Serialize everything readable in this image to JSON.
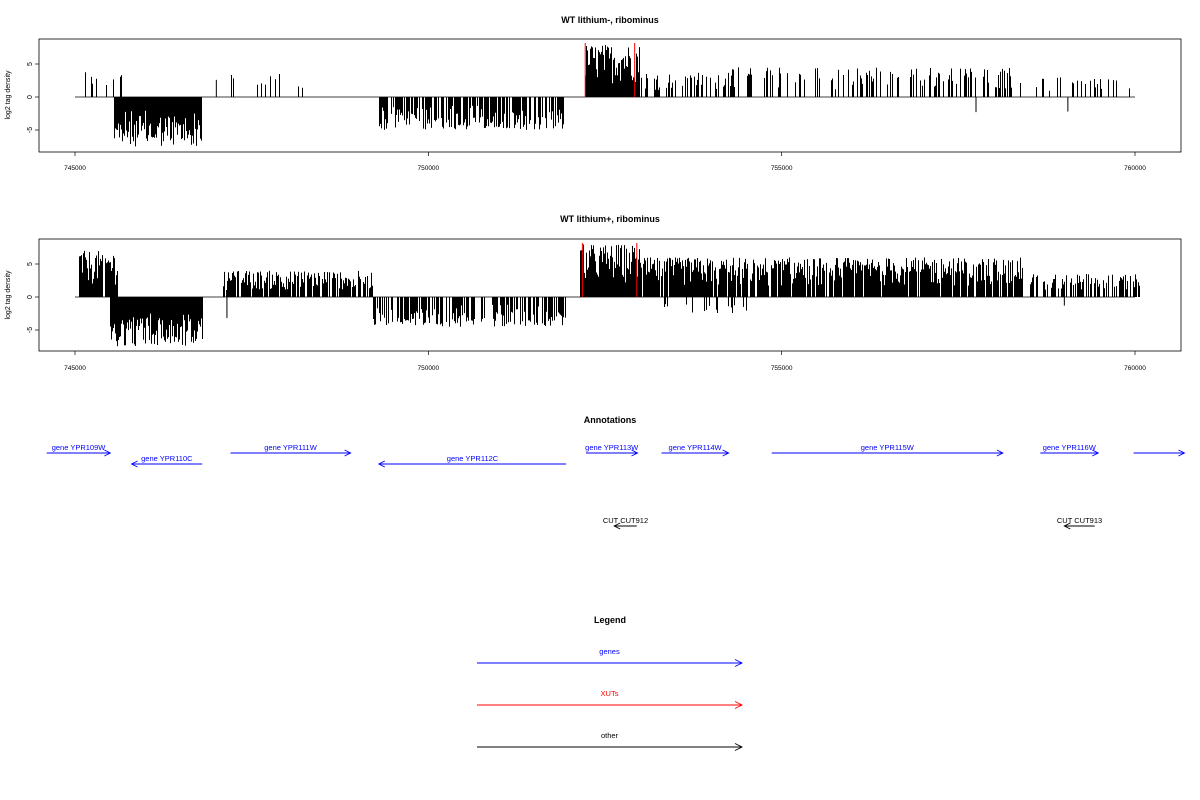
{
  "chart_data": [
    {
      "type": "bar",
      "title": "WT lithium-, ribominus",
      "ylabel": "log2 tag density",
      "xlabel": "",
      "xlim": [
        745000,
        760000
      ],
      "ylim": [
        -7,
        7
      ],
      "xticks": [
        745000,
        750000,
        755000,
        760000
      ],
      "xtick_labels": [
        "745000",
        "750000",
        "755000",
        "760000"
      ],
      "yticks": [
        -5,
        0,
        5
      ],
      "ytick_labels": [
        "-5",
        "0",
        "5"
      ],
      "grid": false,
      "signal_segments": [
        {
          "start": 745050,
          "end": 745650,
          "sign": 1,
          "max": 4,
          "density": 0.25
        },
        {
          "start": 745550,
          "end": 746780,
          "sign": -1,
          "max": 7.5,
          "density": 1.0
        },
        {
          "start": 747100,
          "end": 748350,
          "sign": 1,
          "max": 3.5,
          "density": 0.12
        },
        {
          "start": 749300,
          "end": 751900,
          "sign": -1,
          "max": 5,
          "density": 0.7
        },
        {
          "start": 752220,
          "end": 752980,
          "sign": 1,
          "max": 8,
          "density": 1.0
        },
        {
          "start": 752980,
          "end": 754200,
          "sign": 1,
          "max": 3.8,
          "density": 0.35
        },
        {
          "start": 754200,
          "end": 758400,
          "sign": 1,
          "max": 4.5,
          "density": 0.3
        },
        {
          "start": 758600,
          "end": 760050,
          "sign": 1,
          "max": 3,
          "density": 0.18
        }
      ],
      "sparse_bars": [
        {
          "x": 747000,
          "y": 2.6
        },
        {
          "x": 757750,
          "y": -2.3
        },
        {
          "x": 759050,
          "y": -2.2
        }
      ],
      "highlight_bars": [
        {
          "x": 752220,
          "y": 8.5
        },
        {
          "x": 752920,
          "y": 8.5
        }
      ],
      "colors": {
        "signal": "#000000",
        "xut": "#ff0000"
      }
    },
    {
      "type": "bar",
      "title": "WT lithium+, ribominus",
      "ylabel": "log2 tag density",
      "xlabel": "",
      "xlim": [
        745000,
        760000
      ],
      "ylim": [
        -7,
        7
      ],
      "xticks": [
        745000,
        750000,
        755000,
        760000
      ],
      "xtick_labels": [
        "745000",
        "750000",
        "755000",
        "760000"
      ],
      "yticks": [
        -5,
        0,
        5
      ],
      "ytick_labels": [
        "-5",
        "0",
        "5"
      ],
      "grid": false,
      "signal_segments": [
        {
          "start": 745050,
          "end": 745600,
          "sign": 1,
          "max": 7,
          "density": 0.9
        },
        {
          "start": 745500,
          "end": 746800,
          "sign": -1,
          "max": 7.5,
          "density": 1.0
        },
        {
          "start": 747100,
          "end": 749200,
          "sign": 1,
          "max": 4,
          "density": 0.8
        },
        {
          "start": 749200,
          "end": 751950,
          "sign": -1,
          "max": 4.5,
          "density": 0.6
        },
        {
          "start": 752150,
          "end": 752980,
          "sign": 1,
          "max": 8,
          "density": 1.0
        },
        {
          "start": 752980,
          "end": 758400,
          "sign": 1,
          "max": 6,
          "density": 0.9
        },
        {
          "start": 753200,
          "end": 754500,
          "sign": -1,
          "max": 2.5,
          "density": 0.15
        },
        {
          "start": 758500,
          "end": 760050,
          "sign": 1,
          "max": 3.5,
          "density": 0.6
        }
      ],
      "sparse_bars": [
        {
          "x": 747150,
          "y": -3.2
        },
        {
          "x": 759000,
          "y": -1.3
        }
      ],
      "highlight_bars": [
        {
          "x": 752180,
          "y": 8.5
        },
        {
          "x": 752950,
          "y": 8.5
        }
      ],
      "colors": {
        "signal": "#000000",
        "xut": "#ff0000"
      }
    }
  ],
  "annotations": {
    "title": "Annotations",
    "xlim": [
      745000,
      760000
    ],
    "genes": [
      {
        "label": "gene YPR109W",
        "start": 744600,
        "end": 745500,
        "strand": "+",
        "row": 0
      },
      {
        "label": "gene YPR110C",
        "start": 745800,
        "end": 746800,
        "strand": "-",
        "row": 1
      },
      {
        "label": "gene YPR111W",
        "start": 747200,
        "end": 748900,
        "strand": "+",
        "row": 0
      },
      {
        "label": "gene YPR112C",
        "start": 749300,
        "end": 751950,
        "strand": "-",
        "row": 1
      },
      {
        "label": "gene YPR113W",
        "start": 752230,
        "end": 752960,
        "strand": "+",
        "row": 0
      },
      {
        "label": "gene YPR114W",
        "start": 753300,
        "end": 754250,
        "strand": "+",
        "row": 0
      },
      {
        "label": "gene YPR115W",
        "start": 754860,
        "end": 758130,
        "strand": "+",
        "row": 0
      },
      {
        "label": "gene YPR116W",
        "start": 758660,
        "end": 759480,
        "strand": "+",
        "row": 0
      },
      {
        "label": "",
        "start": 759980,
        "end": 760700,
        "strand": "+",
        "row": 0
      }
    ],
    "others": [
      {
        "label": "CUT CUT912",
        "start": 752630,
        "end": 752950,
        "strand": "-"
      },
      {
        "label": "CUT CUT913",
        "start": 759000,
        "end": 759430,
        "strand": "-"
      }
    ]
  },
  "legend": {
    "title": "Legend",
    "items": [
      {
        "label": "genes",
        "color": "#0000ff"
      },
      {
        "label": "XUTs",
        "color": "#ff0000"
      },
      {
        "label": "other",
        "color": "#000000"
      }
    ]
  }
}
